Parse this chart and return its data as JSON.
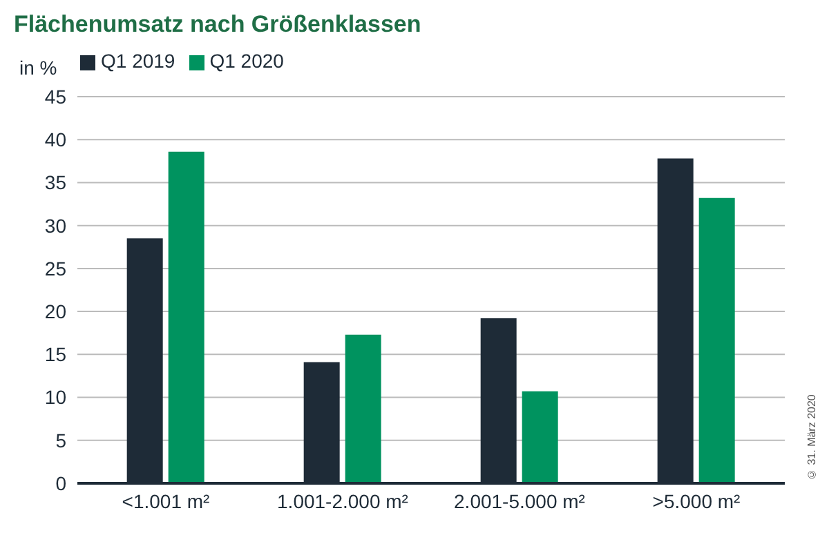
{
  "chart_data": {
    "type": "bar",
    "title": "Flächenumsatz nach Größenklassen",
    "ylabel": "in %",
    "categories": [
      "<1.001 m²",
      "1.001-2.000 m²",
      "2.001-5.000 m²",
      ">5.000 m²"
    ],
    "series": [
      {
        "name": "Q1 2019",
        "color": "#1e2b37",
        "values": [
          28.5,
          14.1,
          19.2,
          37.8
        ]
      },
      {
        "name": "Q1 2020",
        "color": "#00935f",
        "values": [
          38.6,
          17.3,
          10.7,
          33.2
        ]
      }
    ],
    "ylim": [
      0,
      45
    ],
    "yticks": [
      0,
      5,
      10,
      15,
      20,
      25,
      30,
      35,
      40,
      45
    ],
    "grid": "y",
    "legend": "top left",
    "annotations": [
      "© 31. März 2020"
    ]
  }
}
